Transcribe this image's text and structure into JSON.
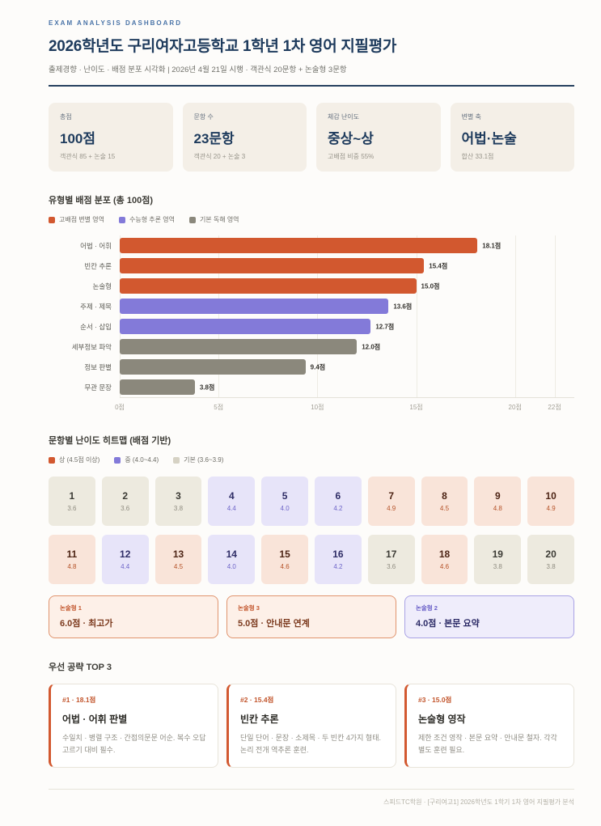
{
  "header": {
    "eyebrow": "EXAM ANALYSIS DASHBOARD",
    "title": "2026학년도 구리여자고등학교 1학년 1차 영어 지필평가",
    "subtitle": "출제경향 · 난이도 · 배점 분포 시각화 | 2026년 4월 21일 시행 · 객관식 20문항 + 논술형 3문항"
  },
  "colors": {
    "navy": "#1d3a5c",
    "accent_orange": "#d2582f",
    "accent_purple": "#837ad9",
    "accent_gray": "#8b887c",
    "card_beige": "#f4efe7"
  },
  "stats": [
    {
      "label": "총점",
      "value": "100점",
      "sub": "객관식 85 + 논술 15"
    },
    {
      "label": "문항 수",
      "value": "23문항",
      "sub": "객관식 20 + 논술 3"
    },
    {
      "label": "체감 난이도",
      "value": "중상~상",
      "sub": "고배점 비중 55%"
    },
    {
      "label": "변별 축",
      "value": "어법·논술",
      "sub": "합산 33.1점"
    }
  ],
  "chart_data": [
    {
      "type": "bar",
      "orientation": "horizontal",
      "title": "유형별 배점 분포 (총 100점)",
      "legend": [
        {
          "label": "고배점 변별 영역",
          "color": "#d2582f"
        },
        {
          "label": "수능형 추론 영역",
          "color": "#837ad9"
        },
        {
          "label": "기본 독해 영역",
          "color": "#8b887c"
        }
      ],
      "legend_position": "top",
      "grid": true,
      "categories": [
        "어법 · 어휘",
        "빈칸 추론",
        "논술형",
        "주제 · 제목",
        "순서 · 삽입",
        "세부정보 파악",
        "정보 판별",
        "무관 문장"
      ],
      "values": [
        18.1,
        15.4,
        15.0,
        13.6,
        12.7,
        12.0,
        9.4,
        3.8
      ],
      "value_labels": [
        "18.1점",
        "15.4점",
        "15.0점",
        "13.6점",
        "12.7점",
        "12.0점",
        "9.4점",
        "3.8점"
      ],
      "groups": [
        "high",
        "high",
        "high",
        "mid",
        "mid",
        "base",
        "base",
        "base"
      ],
      "group_colors": {
        "high": "#d2582f",
        "mid": "#837ad9",
        "base": "#8b887c"
      },
      "xlabel": "",
      "ylabel": "",
      "xlim": [
        0,
        23
      ],
      "x_ticks": [
        {
          "value": 0,
          "label": "0점"
        },
        {
          "value": 5,
          "label": "5점"
        },
        {
          "value": 10,
          "label": "10점"
        },
        {
          "value": 15,
          "label": "15점"
        },
        {
          "value": 20,
          "label": "20점"
        },
        {
          "value": 22,
          "label": "22점"
        }
      ]
    },
    {
      "type": "heatmap",
      "title": "문항별 난이도 히트맵 (배점 기반)",
      "legend": [
        {
          "label": "상 (4.5점 이상)",
          "color": "#d2582f"
        },
        {
          "label": "중 (4.0~4.4)",
          "color": "#837ad9"
        },
        {
          "label": "기본 (3.6~3.9)",
          "color": "#d6d2c4"
        }
      ],
      "cells": [
        {
          "q": "1",
          "score": "3.6",
          "level": "base"
        },
        {
          "q": "2",
          "score": "3.6",
          "level": "base"
        },
        {
          "q": "3",
          "score": "3.8",
          "level": "base"
        },
        {
          "q": "4",
          "score": "4.4",
          "level": "mid"
        },
        {
          "q": "5",
          "score": "4.0",
          "level": "mid"
        },
        {
          "q": "6",
          "score": "4.2",
          "level": "mid"
        },
        {
          "q": "7",
          "score": "4.9",
          "level": "high"
        },
        {
          "q": "8",
          "score": "4.5",
          "level": "high"
        },
        {
          "q": "9",
          "score": "4.8",
          "level": "high"
        },
        {
          "q": "10",
          "score": "4.9",
          "level": "high"
        },
        {
          "q": "11",
          "score": "4.8",
          "level": "high"
        },
        {
          "q": "12",
          "score": "4.4",
          "level": "mid"
        },
        {
          "q": "13",
          "score": "4.5",
          "level": "high"
        },
        {
          "q": "14",
          "score": "4.0",
          "level": "mid"
        },
        {
          "q": "15",
          "score": "4.6",
          "level": "high"
        },
        {
          "q": "16",
          "score": "4.2",
          "level": "mid"
        },
        {
          "q": "17",
          "score": "3.6",
          "level": "base"
        },
        {
          "q": "18",
          "score": "4.6",
          "level": "high"
        },
        {
          "q": "19",
          "score": "3.8",
          "level": "base"
        },
        {
          "q": "20",
          "score": "3.8",
          "level": "base"
        }
      ]
    }
  ],
  "essay_cards": [
    {
      "label": "논술형 1",
      "text": "6.0점 · 최고가",
      "style": "high"
    },
    {
      "label": "논술형 3",
      "text": "5.0점 · 안내문 연계",
      "style": "high"
    },
    {
      "label": "논술형 2",
      "text": "4.0점 · 본문 요약",
      "style": "mid"
    }
  ],
  "top3": {
    "title": "우선 공략 TOP 3",
    "cards": [
      {
        "rank": "#1 · 18.1점",
        "title": "어법 · 어휘 판별",
        "desc": "수일치 · 병렬 구조 · 간접의문문 어순. 복수 오답 고르기 대비 필수."
      },
      {
        "rank": "#2 · 15.4점",
        "title": "빈칸 추론",
        "desc": "단일 단어 · 문장 · 소제목 · 두 빈칸 4가지 형태. 논리 전개 역추론 훈련."
      },
      {
        "rank": "#3 · 15.0점",
        "title": "논술형 영작",
        "desc": "제한 조건 영작 · 본문 요약 · 안내문 철자. 각각 별도 훈련 필요."
      }
    ]
  },
  "footer": {
    "text": "스피드TC학원 · [구리여고1] 2026학년도 1학기 1차 영어 지필평가 분석"
  }
}
